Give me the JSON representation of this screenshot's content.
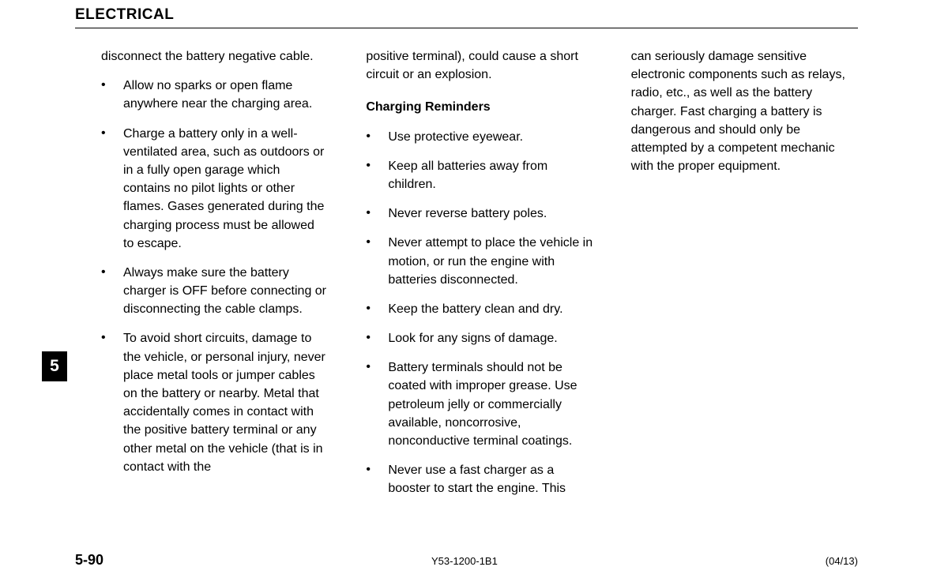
{
  "header": {
    "title": "ELECTRICAL"
  },
  "tab": {
    "number": "5"
  },
  "column1": {
    "intro": "disconnect the battery negative cable.",
    "bullets": [
      "Allow no sparks or open flame anywhere near the charging area.",
      "Charge a battery only in a well-ventilated area, such as outdoors or in a fully open garage which contains no pilot lights or other flames.  Gases generated during the charging process must be allowed to escape.",
      "Always make sure the battery charger is OFF before connecting or disconnecting the cable clamps.",
      "To avoid short circuits, damage to the vehicle, or personal injury, never place metal tools or jumper cables on the battery or nearby. Metal that accidentally comes in contact with the positive battery terminal or any other metal on the vehicle (that is in contact with the"
    ]
  },
  "column2": {
    "intro": "positive terminal), could cause a short circuit or an explosion.",
    "subheading": "Charging Reminders",
    "bullets": [
      "Use protective eyewear.",
      "Keep all batteries away from children.",
      "Never reverse battery poles.",
      "Never attempt to place the vehicle in motion, or run the engine with batteries disconnected.",
      "Keep the battery clean and dry.",
      "Look for any signs of damage.",
      "Battery terminals should not be coated with improper grease.  Use petroleum jelly or commercially available, noncorrosive, nonconductive terminal coatings.",
      "Never use a fast charger as a booster to start the engine.  This"
    ]
  },
  "column3": {
    "text": "can seriously damage sensitive electronic components such as relays, radio, etc., as well as the battery charger.  Fast charging a battery is dangerous and should only be attempted by a competent mechanic with the proper equipment."
  },
  "footer": {
    "pageNumber": "5-90",
    "docCode": "Y53-1200-1B1",
    "docDate": "(04/13)"
  }
}
